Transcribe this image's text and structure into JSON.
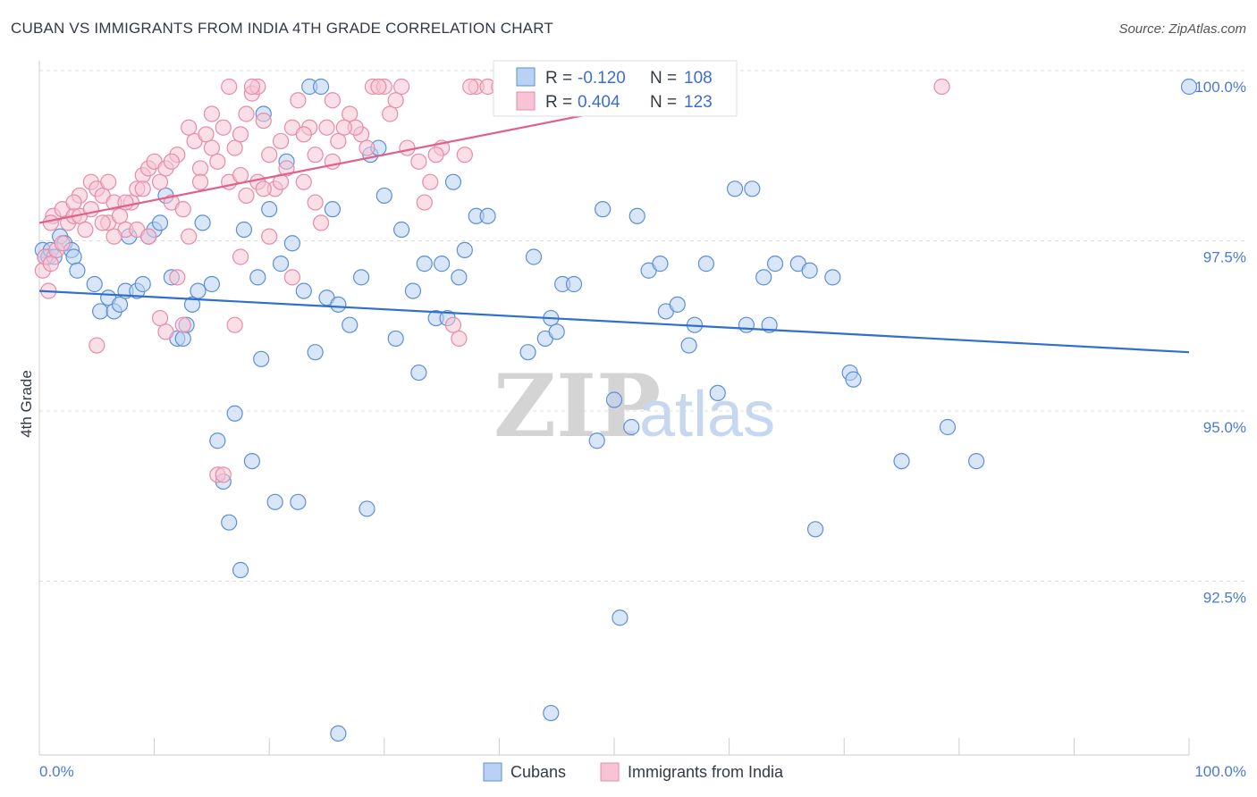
{
  "title": "CUBAN VS IMMIGRANTS FROM INDIA 4TH GRADE CORRELATION CHART",
  "source": "Source: ZipAtlas.com",
  "watermark": {
    "zip": "ZIP",
    "atlas": "atlas"
  },
  "colors": {
    "blue": "#5b8fd8",
    "blue_fill": "#b9d1f2",
    "blue_line": "#2f6fcf",
    "pink": "#e88aa8",
    "pink_fill": "#f6c4d4",
    "pink_line": "#e0608a",
    "grid": "#dddddd"
  },
  "chart_data": {
    "type": "scatter",
    "title": "CUBAN VS IMMIGRANTS FROM INDIA 4TH GRADE CORRELATION CHART",
    "xlabel": "",
    "ylabel": "4th Grade",
    "xlim": [
      0,
      100
    ],
    "ylim": [
      90.3,
      100.4
    ],
    "x_tick_labels": {
      "min": "0.0%",
      "max": "100.0%"
    },
    "y_ticks": [
      {
        "value": 100.0,
        "label": "100.0%"
      },
      {
        "value": 97.5,
        "label": "97.5%"
      },
      {
        "value": 95.0,
        "label": "95.0%"
      },
      {
        "value": 92.5,
        "label": "92.5%"
      }
    ],
    "legend": {
      "placement": "top-center",
      "rows": [
        {
          "r_label": "R = ",
          "r_value": "-0.120",
          "n_label": "N = ",
          "n_value": "108"
        },
        {
          "r_label": "R = ",
          "r_value": "0.404",
          "n_label": "N = ",
          "n_value": "123"
        }
      ]
    },
    "bottom_legend": [
      "Cubans",
      "Immigrants from India"
    ],
    "series": [
      {
        "name": "Cubans",
        "trend": [
          [
            0,
            97.0
          ],
          [
            100,
            96.1
          ]
        ],
        "points": [
          [
            0.3,
            97.6
          ],
          [
            0.5,
            97.5
          ],
          [
            0.8,
            97.5
          ],
          [
            1.0,
            97.6
          ],
          [
            1.3,
            97.5
          ],
          [
            1.8,
            97.8
          ],
          [
            2.2,
            97.7
          ],
          [
            2.8,
            97.6
          ],
          [
            3.0,
            97.5
          ],
          [
            3.3,
            97.3
          ],
          [
            4.8,
            97.1
          ],
          [
            5.3,
            96.7
          ],
          [
            6.0,
            96.9
          ],
          [
            6.5,
            96.7
          ],
          [
            7.0,
            96.8
          ],
          [
            7.5,
            97.0
          ],
          [
            7.8,
            97.8
          ],
          [
            8.5,
            97.0
          ],
          [
            9.0,
            97.1
          ],
          [
            9.5,
            97.8
          ],
          [
            10.0,
            97.9
          ],
          [
            10.5,
            98.0
          ],
          [
            11.0,
            98.4
          ],
          [
            11.5,
            97.2
          ],
          [
            12.0,
            96.3
          ],
          [
            12.5,
            96.3
          ],
          [
            12.8,
            96.5
          ],
          [
            13.3,
            96.8
          ],
          [
            13.8,
            97.0
          ],
          [
            14.2,
            98.0
          ],
          [
            15.0,
            97.1
          ],
          [
            15.5,
            94.8
          ],
          [
            16.0,
            94.2
          ],
          [
            16.5,
            93.6
          ],
          [
            17.0,
            95.2
          ],
          [
            17.5,
            92.9
          ],
          [
            17.8,
            97.9
          ],
          [
            18.5,
            94.5
          ],
          [
            19.0,
            97.2
          ],
          [
            19.3,
            96.0
          ],
          [
            19.5,
            99.6
          ],
          [
            20.0,
            98.2
          ],
          [
            20.5,
            93.9
          ],
          [
            21.0,
            97.4
          ],
          [
            21.5,
            98.9
          ],
          [
            22.0,
            97.7
          ],
          [
            22.5,
            93.9
          ],
          [
            23.0,
            97.0
          ],
          [
            23.5,
            100.0
          ],
          [
            24.0,
            96.1
          ],
          [
            24.5,
            100.0
          ],
          [
            25.0,
            96.9
          ],
          [
            25.5,
            98.2
          ],
          [
            26.0,
            96.8
          ],
          [
            27.0,
            96.5
          ],
          [
            28.0,
            97.2
          ],
          [
            28.5,
            93.8
          ],
          [
            28.8,
            99.0
          ],
          [
            29.5,
            99.1
          ],
          [
            30.0,
            98.4
          ],
          [
            31.0,
            96.3
          ],
          [
            31.5,
            97.9
          ],
          [
            32.5,
            97.0
          ],
          [
            33.0,
            95.8
          ],
          [
            33.5,
            97.4
          ],
          [
            34.5,
            96.6
          ],
          [
            35.0,
            97.4
          ],
          [
            35.5,
            96.6
          ],
          [
            36.0,
            98.6
          ],
          [
            36.5,
            97.2
          ],
          [
            37.0,
            97.6
          ],
          [
            38.0,
            98.1
          ],
          [
            39.0,
            98.1
          ],
          [
            42.5,
            96.1
          ],
          [
            43.0,
            97.5
          ],
          [
            44.0,
            96.3
          ],
          [
            44.5,
            96.6
          ],
          [
            45.0,
            96.4
          ],
          [
            45.5,
            97.1
          ],
          [
            46.5,
            97.1
          ],
          [
            48.5,
            94.8
          ],
          [
            49.0,
            98.2
          ],
          [
            50.0,
            95.4
          ],
          [
            50.5,
            92.2
          ],
          [
            51.5,
            95.0
          ],
          [
            52.0,
            98.1
          ],
          [
            53.0,
            97.3
          ],
          [
            54.0,
            97.4
          ],
          [
            54.5,
            96.7
          ],
          [
            55.5,
            96.8
          ],
          [
            56.5,
            96.2
          ],
          [
            57.0,
            96.5
          ],
          [
            58.0,
            97.4
          ],
          [
            59.0,
            95.5
          ],
          [
            60.5,
            98.5
          ],
          [
            61.5,
            96.5
          ],
          [
            62.0,
            98.5
          ],
          [
            63.0,
            97.2
          ],
          [
            63.5,
            96.5
          ],
          [
            64.0,
            97.4
          ],
          [
            66.0,
            97.4
          ],
          [
            67.0,
            97.3
          ],
          [
            67.5,
            93.5
          ],
          [
            69.0,
            97.2
          ],
          [
            70.5,
            95.8
          ],
          [
            70.8,
            95.7
          ],
          [
            75.0,
            94.5
          ],
          [
            79.0,
            95.0
          ],
          [
            81.5,
            94.5
          ],
          [
            100.0,
            100.0
          ],
          [
            44.5,
            90.8
          ],
          [
            26.0,
            90.5
          ]
        ]
      },
      {
        "name": "Immigrants from India",
        "trend": [
          [
            0,
            98.0
          ],
          [
            60,
            100.0
          ]
        ],
        "points": [
          [
            0.3,
            97.3
          ],
          [
            0.5,
            97.5
          ],
          [
            0.8,
            97.0
          ],
          [
            1.0,
            97.4
          ],
          [
            1.2,
            98.1
          ],
          [
            1.5,
            97.6
          ],
          [
            2.0,
            98.2
          ],
          [
            2.5,
            98.0
          ],
          [
            3.0,
            98.1
          ],
          [
            3.5,
            98.1
          ],
          [
            4.0,
            97.9
          ],
          [
            4.5,
            98.6
          ],
          [
            5.0,
            98.5
          ],
          [
            5.5,
            98.4
          ],
          [
            6.0,
            98.0
          ],
          [
            6.5,
            98.3
          ],
          [
            7.0,
            98.1
          ],
          [
            7.5,
            97.9
          ],
          [
            8.0,
            98.3
          ],
          [
            8.5,
            98.5
          ],
          [
            9.0,
            98.7
          ],
          [
            9.5,
            98.8
          ],
          [
            10.0,
            98.9
          ],
          [
            10.5,
            98.6
          ],
          [
            11.0,
            98.8
          ],
          [
            11.5,
            98.3
          ],
          [
            12.0,
            99.0
          ],
          [
            12.5,
            98.2
          ],
          [
            13.0,
            99.4
          ],
          [
            13.5,
            99.2
          ],
          [
            14.0,
            98.8
          ],
          [
            14.5,
            99.3
          ],
          [
            15.0,
            99.1
          ],
          [
            15.5,
            98.9
          ],
          [
            16.0,
            99.4
          ],
          [
            16.5,
            98.6
          ],
          [
            17.0,
            99.1
          ],
          [
            17.5,
            99.3
          ],
          [
            18.0,
            99.6
          ],
          [
            18.5,
            99.9
          ],
          [
            19.0,
            100.0
          ],
          [
            19.5,
            99.5
          ],
          [
            20.0,
            99.0
          ],
          [
            20.5,
            98.5
          ],
          [
            21.0,
            99.2
          ],
          [
            21.5,
            98.8
          ],
          [
            22.0,
            99.4
          ],
          [
            22.5,
            99.8
          ],
          [
            23.0,
            98.6
          ],
          [
            23.5,
            99.4
          ],
          [
            24.0,
            98.3
          ],
          [
            24.5,
            98.0
          ],
          [
            25.0,
            99.4
          ],
          [
            25.5,
            98.9
          ],
          [
            26.0,
            99.2
          ],
          [
            27.0,
            99.6
          ],
          [
            28.0,
            99.3
          ],
          [
            28.5,
            99.1
          ],
          [
            29.0,
            100.0
          ],
          [
            30.0,
            100.0
          ],
          [
            30.5,
            99.6
          ],
          [
            31.5,
            100.0
          ],
          [
            32.0,
            99.1
          ],
          [
            33.0,
            98.9
          ],
          [
            34.0,
            98.6
          ],
          [
            35.0,
            99.1
          ],
          [
            36.0,
            96.5
          ],
          [
            36.5,
            96.3
          ],
          [
            37.0,
            99.0
          ],
          [
            38.0,
            100.0
          ],
          [
            39.0,
            100.0
          ],
          [
            42.0,
            100.0
          ],
          [
            45.5,
            100.0
          ],
          [
            1.0,
            98.0
          ],
          [
            2.0,
            97.7
          ],
          [
            3.5,
            98.4
          ],
          [
            4.5,
            98.2
          ],
          [
            5.5,
            98.0
          ],
          [
            6.5,
            97.8
          ],
          [
            7.5,
            98.3
          ],
          [
            8.5,
            97.9
          ],
          [
            9.5,
            97.8
          ],
          [
            10.5,
            96.6
          ],
          [
            11.0,
            96.4
          ],
          [
            12.0,
            97.2
          ],
          [
            12.5,
            96.5
          ],
          [
            15.5,
            94.3
          ],
          [
            16.0,
            94.3
          ],
          [
            17.0,
            96.5
          ],
          [
            17.5,
            97.5
          ],
          [
            18.0,
            98.4
          ],
          [
            19.0,
            98.6
          ],
          [
            20.0,
            97.8
          ],
          [
            22.0,
            97.2
          ],
          [
            5.0,
            96.2
          ],
          [
            9.0,
            98.5
          ],
          [
            13.0,
            97.8
          ],
          [
            14.0,
            98.6
          ],
          [
            16.5,
            100.0
          ],
          [
            18.5,
            100.0
          ],
          [
            21.0,
            98.6
          ],
          [
            23.0,
            99.3
          ],
          [
            25.5,
            99.8
          ],
          [
            27.5,
            99.4
          ],
          [
            29.5,
            100.0
          ],
          [
            33.5,
            98.3
          ],
          [
            37.5,
            100.0
          ],
          [
            40.0,
            100.0
          ],
          [
            78.5,
            100.0
          ],
          [
            3.0,
            98.3
          ],
          [
            6.0,
            98.6
          ],
          [
            11.5,
            98.9
          ],
          [
            15.0,
            99.6
          ],
          [
            17.5,
            98.7
          ],
          [
            19.5,
            98.5
          ],
          [
            24.0,
            99.0
          ],
          [
            26.5,
            99.4
          ],
          [
            31.0,
            99.8
          ],
          [
            34.5,
            99.0
          ]
        ]
      }
    ]
  }
}
